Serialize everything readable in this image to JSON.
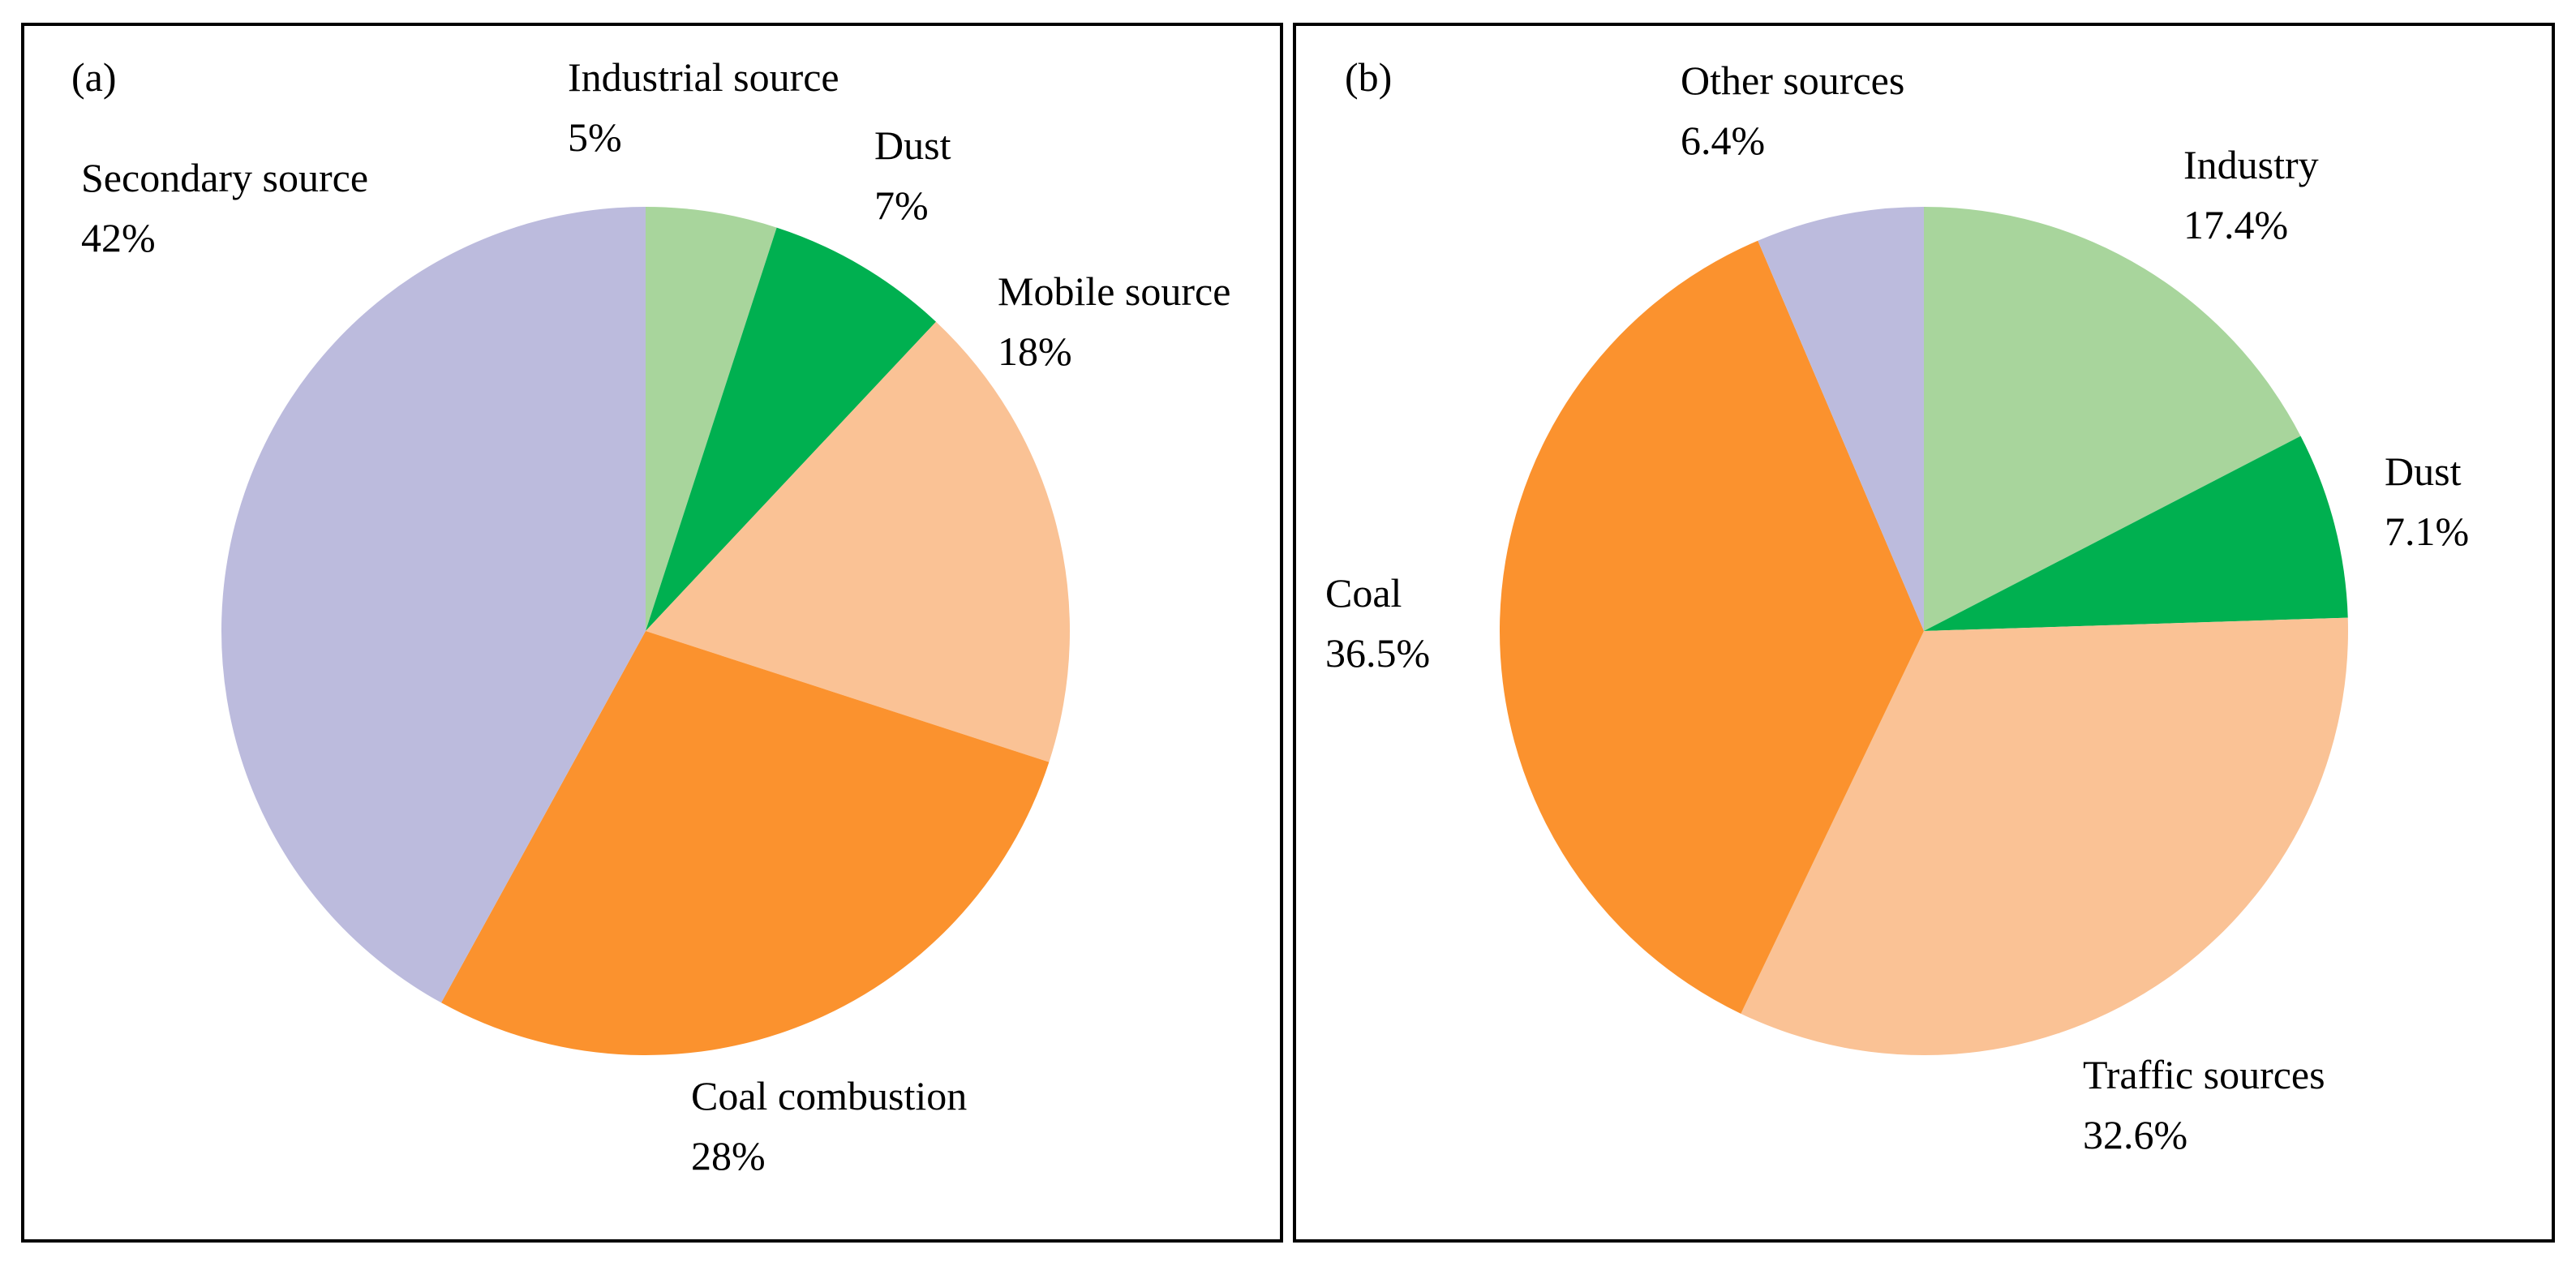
{
  "chart_data": [
    {
      "type": "pie",
      "panel_label": "(a)",
      "start_angle_deg": 0,
      "direction": "clockwise",
      "slices": [
        {
          "label": "Industrial source",
          "value": 5,
          "value_label": "5%",
          "color": "#a8d59c"
        },
        {
          "label": "Dust",
          "value": 7,
          "value_label": "7%",
          "color": "#00b050"
        },
        {
          "label": "Mobile source",
          "value": 18,
          "value_label": "18%",
          "color": "#fac295"
        },
        {
          "label": "Coal combustion",
          "value": 28,
          "value_label": "28%",
          "color": "#fb922e"
        },
        {
          "label": "Secondary source",
          "value": 42,
          "value_label": "42%",
          "color": "#bcbbdd"
        }
      ]
    },
    {
      "type": "pie",
      "panel_label": "(b)",
      "start_angle_deg": 0,
      "direction": "clockwise",
      "slices": [
        {
          "label": "Industry",
          "value": 17.4,
          "value_label": "17.4%",
          "color": "#a8d59c"
        },
        {
          "label": "Dust",
          "value": 7.1,
          "value_label": "7.1%",
          "color": "#00b050"
        },
        {
          "label": "Traffic sources",
          "value": 32.6,
          "value_label": "32.6%",
          "color": "#fac295"
        },
        {
          "label": "Coal",
          "value": 36.5,
          "value_label": "36.5%",
          "color": "#fb922e"
        },
        {
          "label": "Other sources",
          "value": 6.4,
          "value_label": "6.4%",
          "color": "#bcbbdd"
        }
      ]
    }
  ]
}
